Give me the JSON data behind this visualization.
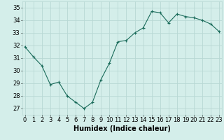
{
  "x": [
    0,
    1,
    2,
    3,
    4,
    5,
    6,
    7,
    8,
    9,
    10,
    11,
    12,
    13,
    14,
    15,
    16,
    17,
    18,
    19,
    20,
    21,
    22,
    23
  ],
  "y": [
    31.9,
    31.1,
    30.4,
    28.9,
    29.1,
    28.0,
    27.5,
    27.0,
    27.5,
    29.3,
    30.6,
    32.3,
    32.4,
    33.0,
    33.4,
    34.7,
    34.6,
    33.8,
    34.5,
    34.3,
    34.2,
    34.0,
    33.7,
    33.1
  ],
  "line_color": "#1a6b5a",
  "marker": "+",
  "marker_size": 3,
  "marker_linewidth": 0.8,
  "bg_color": "#d4eeea",
  "grid_color": "#b8d8d4",
  "xlabel": "Humidex (Indice chaleur)",
  "xlabel_fontsize": 7,
  "tick_fontsize": 6,
  "ylim": [
    26.5,
    35.5
  ],
  "yticks": [
    27,
    28,
    29,
    30,
    31,
    32,
    33,
    34,
    35
  ],
  "xticks": [
    0,
    1,
    2,
    3,
    4,
    5,
    6,
    7,
    8,
    9,
    10,
    11,
    12,
    13,
    14,
    15,
    16,
    17,
    18,
    19,
    20,
    21,
    22,
    23
  ],
  "xlim": [
    -0.3,
    23.3
  ]
}
